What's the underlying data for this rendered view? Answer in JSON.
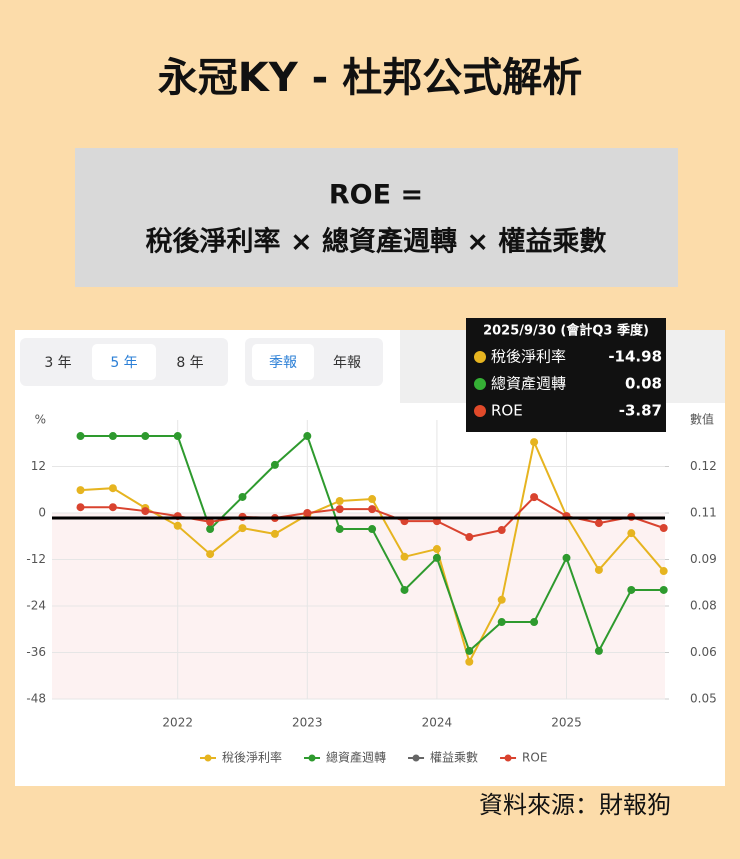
{
  "header": {
    "title": "永冠KY - 杜邦公式解析"
  },
  "formula": {
    "line1": "ROE =",
    "line2": "稅後淨利率 × 總資產週轉 × 權益乘數"
  },
  "controls": {
    "range_buttons": [
      "3 年",
      "5 年",
      "8 年"
    ],
    "period_buttons": [
      "季報",
      "年報"
    ]
  },
  "tooltip": {
    "title": "2025/9/30 (會計Q3 季度)",
    "rows": [
      {
        "name": "稅後淨利率",
        "value": "-14.98"
      },
      {
        "name": "總資產週轉",
        "value": "0.08"
      },
      {
        "name": "ROE",
        "value": "-3.87"
      }
    ]
  },
  "chart_data": {
    "type": "line",
    "ylabel": "%",
    "y2label": "數值",
    "x": [
      2021.25,
      2021.5,
      2021.75,
      2022.0,
      2022.25,
      2022.5,
      2022.75,
      2023.0,
      2023.25,
      2023.5,
      2023.75,
      2024.0,
      2024.25,
      2024.5,
      2024.75,
      2025.0,
      2025.25,
      2025.5,
      2025.75
    ],
    "xlim": [
      2021.03,
      2025.76
    ],
    "xticks": [
      2022,
      2023,
      2024,
      2025
    ],
    "ylim": [
      -48,
      24
    ],
    "yticks": [
      12,
      0,
      -12,
      -24,
      -36,
      -48
    ],
    "y2lim": [
      0.05,
      0.137
    ],
    "y2ticks": [
      {
        "value": 0.1225,
        "label": "0.12"
      },
      {
        "value": 0.108,
        "label": "0.11"
      },
      {
        "value": 0.0935,
        "label": "0.09"
      },
      {
        "value": 0.079,
        "label": "0.08"
      },
      {
        "value": 0.0645,
        "label": "0.06"
      },
      {
        "value": 0.05,
        "label": "0.05"
      }
    ],
    "grid": true,
    "series": [
      {
        "name": "稅後淨利率",
        "color": "#e6b420",
        "values": [
          5.9,
          6.4,
          1.3,
          -3.3,
          -10.6,
          -3.9,
          -5.4,
          -0.5,
          3.1,
          3.6,
          -11.3,
          -9.3,
          -38.4,
          -22.4,
          18.3,
          -0.8,
          -14.7,
          -5.2,
          -14.98
        ]
      },
      {
        "name": "總資產週轉",
        "color": "#2e9a2e",
        "axis": "y2",
        "values": [
          0.132,
          0.132,
          0.132,
          0.132,
          0.103,
          0.113,
          0.123,
          0.132,
          0.103,
          0.103,
          0.084,
          0.094,
          0.065,
          0.074,
          0.074,
          0.094,
          0.065,
          0.084,
          0.084
        ]
      },
      {
        "name": "權益乘數",
        "color": "#666666",
        "values": [
          null,
          null,
          null,
          null,
          null,
          null,
          null,
          null,
          null,
          null,
          null,
          null,
          null,
          null,
          null,
          null,
          null,
          null,
          null
        ]
      },
      {
        "name": "ROE",
        "color": "#d9432f",
        "values": [
          1.5,
          1.5,
          0.5,
          -0.8,
          -2.3,
          -1.0,
          -1.3,
          0.0,
          1.0,
          1.0,
          -2.1,
          -2.1,
          -6.2,
          -4.4,
          4.1,
          -0.8,
          -2.6,
          -1.0,
          -3.87
        ]
      }
    ]
  },
  "source": "資料來源：財報狗"
}
